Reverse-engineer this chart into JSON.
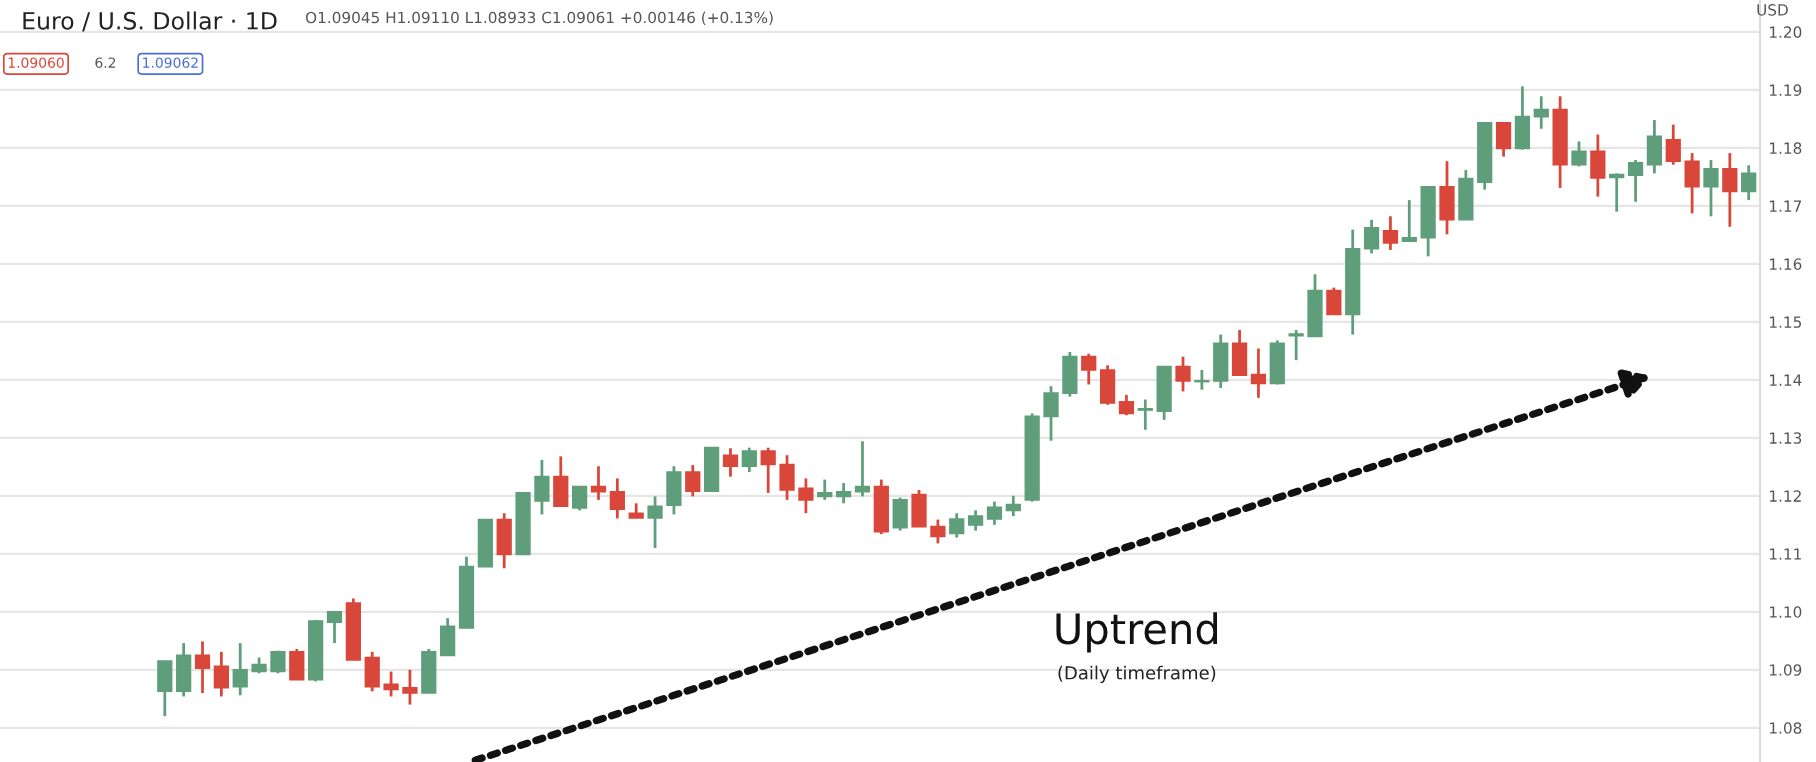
{
  "chart_data": {
    "type": "candlestick",
    "title": "Euro / U.S. Dollar · 1D",
    "ylabel": "USD",
    "annotations": [
      "O1.09045 H1.09110 L1.08933 C1.09061 +0.00146 (+0.13%)",
      "1.09060",
      "6.2",
      "1.09062",
      "Uptrend",
      "(Daily timeframe)"
    ],
    "categories": [
      null,
      null,
      null,
      null,
      null,
      null,
      null,
      null,
      null,
      null,
      null,
      null,
      null,
      null,
      null,
      null,
      null,
      null,
      null,
      null,
      null,
      null,
      null,
      null,
      null,
      null,
      null,
      null,
      null,
      null,
      null,
      null,
      null,
      null,
      null,
      null,
      null,
      null,
      null,
      null,
      null,
      null,
      null,
      null,
      null,
      null,
      null,
      null,
      null,
      null,
      null,
      null,
      null,
      null,
      null,
      null,
      null,
      null,
      null,
      null,
      null,
      null,
      null,
      null,
      null,
      null,
      null,
      null,
      null,
      null,
      null,
      null,
      null,
      null,
      null,
      null,
      null,
      null,
      null,
      null,
      null,
      null,
      null,
      null,
      null
    ],
    "ohlc": [
      [
        1.0863,
        1.0915,
        1.082,
        1.0915
      ],
      [
        1.0863,
        1.0946,
        1.0854,
        1.0925
      ],
      [
        1.0925,
        1.0949,
        1.086,
        1.0903
      ],
      [
        1.0906,
        1.0931,
        1.0854,
        1.0869
      ],
      [
        1.0871,
        1.0946,
        1.0856,
        1.09
      ],
      [
        1.0897,
        1.0921,
        1.0894,
        1.0909
      ],
      [
        1.0897,
        1.0933,
        1.0894,
        1.0931
      ],
      [
        1.0931,
        1.0936,
        1.0883,
        1.0883
      ],
      [
        1.0883,
        1.0986,
        1.088,
        1.0984
      ],
      [
        1.0982,
        1.1,
        1.0946,
        1.1
      ],
      [
        1.1015,
        1.1023,
        1.0917,
        1.0917
      ],
      [
        1.0921,
        1.0931,
        1.0863,
        1.0871
      ],
      [
        1.0875,
        1.0897,
        1.0854,
        1.0866
      ],
      [
        1.0869,
        1.09,
        1.084,
        1.086
      ],
      [
        1.086,
        1.0936,
        1.086,
        1.0931
      ],
      [
        1.0925,
        1.0989,
        1.0925,
        1.0975
      ],
      [
        1.0972,
        1.1095,
        1.0972,
        1.1078
      ],
      [
        1.1078,
        1.1159,
        1.1078,
        1.1159
      ],
      [
        1.1159,
        1.117,
        1.1075,
        1.1099
      ],
      [
        1.1099,
        1.1205,
        1.1099,
        1.1205
      ],
      [
        1.1191,
        1.1262,
        1.1168,
        1.1233
      ],
      [
        1.1233,
        1.1268,
        1.1182,
        1.1182
      ],
      [
        1.1179,
        1.1216,
        1.1175,
        1.1216
      ],
      [
        1.1216,
        1.1251,
        1.1193,
        1.1207
      ],
      [
        1.1207,
        1.123,
        1.1161,
        1.1177
      ],
      [
        1.117,
        1.1187,
        1.1162,
        1.1162
      ],
      [
        1.1162,
        1.1199,
        1.111,
        1.1182
      ],
      [
        1.1184,
        1.1251,
        1.1168,
        1.1241
      ],
      [
        1.1241,
        1.1253,
        1.1199,
        1.1208
      ],
      [
        1.1208,
        1.1283,
        1.1208,
        1.1283
      ],
      [
        1.127,
        1.1282,
        1.1233,
        1.1251
      ],
      [
        1.1251,
        1.1283,
        1.1241,
        1.1277
      ],
      [
        1.1277,
        1.1283,
        1.1205,
        1.1254
      ],
      [
        1.1254,
        1.127,
        1.1193,
        1.121
      ],
      [
        1.1213,
        1.123,
        1.117,
        1.1193
      ],
      [
        1.1199,
        1.1228,
        1.1193,
        1.1205
      ],
      [
        1.1199,
        1.1222,
        1.1187,
        1.1207
      ],
      [
        1.1207,
        1.1294,
        1.1199,
        1.1216
      ],
      [
        1.1216,
        1.1228,
        1.1134,
        1.1138
      ],
      [
        1.1145,
        1.1197,
        1.114,
        1.1193
      ],
      [
        1.1202,
        1.121,
        1.1147,
        1.1147
      ],
      [
        1.1147,
        1.1159,
        1.1118,
        1.113
      ],
      [
        1.1135,
        1.117,
        1.1128,
        1.116
      ],
      [
        1.115,
        1.1175,
        1.114,
        1.1165
      ],
      [
        1.116,
        1.119,
        1.115,
        1.118
      ],
      [
        1.1175,
        1.12,
        1.1165,
        1.1185
      ],
      [
        1.1193,
        1.1342,
        1.119,
        1.1337
      ],
      [
        1.1337,
        1.1389,
        1.1295,
        1.1377
      ],
      [
        1.1377,
        1.1448,
        1.1371,
        1.144
      ],
      [
        1.144,
        1.1445,
        1.1392,
        1.1417
      ],
      [
        1.1417,
        1.1425,
        1.1357,
        1.136
      ],
      [
        1.1362,
        1.1374,
        1.1339,
        1.1342
      ],
      [
        1.1348,
        1.1366,
        1.1314,
        1.135
      ],
      [
        1.1346,
        1.1423,
        1.1331,
        1.1423
      ],
      [
        1.1423,
        1.144,
        1.138,
        1.1398
      ],
      [
        1.1397,
        1.1417,
        1.1383,
        1.1398
      ],
      [
        1.1398,
        1.1478,
        1.1386,
        1.1463
      ],
      [
        1.1463,
        1.1486,
        1.1408,
        1.1408
      ],
      [
        1.1409,
        1.1454,
        1.1369,
        1.1394
      ],
      [
        1.1394,
        1.1468,
        1.1392,
        1.1463
      ],
      [
        1.1476,
        1.1486,
        1.1434,
        1.1479
      ],
      [
        1.1475,
        1.1582,
        1.1475,
        1.1554
      ],
      [
        1.1554,
        1.1559,
        1.1513,
        1.1513
      ],
      [
        1.1513,
        1.1659,
        1.1478,
        1.1626
      ],
      [
        1.1626,
        1.1676,
        1.1618,
        1.1662
      ],
      [
        1.1657,
        1.1682,
        1.1624,
        1.1636
      ],
      [
        1.1639,
        1.171,
        1.1639,
        1.1645
      ],
      [
        1.1645,
        1.1733,
        1.1613,
        1.1733
      ],
      [
        1.1733,
        1.1777,
        1.1651,
        1.1676
      ],
      [
        1.1676,
        1.1762,
        1.1676,
        1.1747
      ],
      [
        1.1741,
        1.1843,
        1.1728,
        1.1843
      ],
      [
        1.1843,
        1.1843,
        1.1785,
        1.1799
      ],
      [
        1.1799,
        1.1906,
        1.1797,
        1.1854
      ],
      [
        1.1854,
        1.1889,
        1.1833,
        1.1866
      ],
      [
        1.1866,
        1.1889,
        1.1731,
        1.1771
      ],
      [
        1.1771,
        1.1811,
        1.1768,
        1.1794
      ],
      [
        1.1794,
        1.1823,
        1.1716,
        1.1748
      ],
      [
        1.1749,
        1.1756,
        1.169,
        1.1754
      ],
      [
        1.1753,
        1.1779,
        1.1707,
        1.1774
      ],
      [
        1.1771,
        1.1848,
        1.1756,
        1.182
      ],
      [
        1.1814,
        1.184,
        1.1771,
        1.1777
      ],
      [
        1.1777,
        1.1791,
        1.1687,
        1.1733
      ],
      [
        1.1733,
        1.1779,
        1.1682,
        1.1764
      ],
      [
        1.1764,
        1.1791,
        1.1664,
        1.1725
      ],
      [
        1.1725,
        1.177,
        1.171,
        1.1756
      ]
    ],
    "colors": [
      "#5f9e7a",
      "#5f9e7a",
      "#d9473a",
      "#d9473a",
      "#5f9e7a",
      "#5f9e7a",
      "#5f9e7a",
      "#d9473a",
      "#5f9e7a",
      "#5f9e7a",
      "#d9473a",
      "#d9473a",
      "#d9473a",
      "#d9473a",
      "#5f9e7a",
      "#5f9e7a",
      "#5f9e7a",
      "#5f9e7a",
      "#d9473a",
      "#5f9e7a",
      "#5f9e7a",
      "#d9473a",
      "#5f9e7a",
      "#d9473a",
      "#d9473a",
      "#d9473a",
      "#5f9e7a",
      "#5f9e7a",
      "#d9473a",
      "#5f9e7a",
      "#d9473a",
      "#5f9e7a",
      "#d9473a",
      "#d9473a",
      "#d9473a",
      "#5f9e7a",
      "#5f9e7a",
      "#5f9e7a",
      "#d9473a",
      "#5f9e7a",
      "#d9473a",
      "#d9473a",
      "#5f9e7a",
      "#5f9e7a",
      "#5f9e7a",
      "#5f9e7a",
      "#5f9e7a",
      "#5f9e7a",
      "#5f9e7a",
      "#d9473a",
      "#d9473a",
      "#d9473a",
      "#5f9e7a",
      "#5f9e7a",
      "#d9473a",
      "#5f9e7a",
      "#5f9e7a",
      "#d9473a",
      "#d9473a",
      "#5f9e7a",
      "#5f9e7a",
      "#5f9e7a",
      "#d9473a",
      "#5f9e7a",
      "#5f9e7a",
      "#d9473a",
      "#5f9e7a",
      "#5f9e7a",
      "#d9473a",
      "#5f9e7a",
      "#5f9e7a",
      "#d9473a",
      "#5f9e7a",
      "#5f9e7a",
      "#d9473a",
      "#5f9e7a",
      "#d9473a",
      "#5f9e7a",
      "#5f9e7a",
      "#5f9e7a",
      "#d9473a",
      "#d9473a",
      "#5f9e7a",
      "#d9473a",
      "#5f9e7a"
    ],
    "ylim": [
      1.0741,
      1.2055
    ],
    "yticks": [
      {
        "value": 1.08,
        "label": "1.08"
      },
      {
        "value": 1.09,
        "label": "1.09"
      },
      {
        "value": 1.1,
        "label": "1.10"
      },
      {
        "value": 1.11,
        "label": "1.11"
      },
      {
        "value": 1.12,
        "label": "1.12"
      },
      {
        "value": 1.13,
        "label": "1.13"
      },
      {
        "value": 1.14,
        "label": "1.14"
      },
      {
        "value": 1.15,
        "label": "1.15"
      },
      {
        "value": 1.16,
        "label": "1.16"
      },
      {
        "value": 1.17,
        "label": "1.17"
      },
      {
        "value": 1.18,
        "label": "1.18"
      },
      {
        "value": 1.19,
        "label": "1.19"
      },
      {
        "value": 1.2,
        "label": "1.20"
      }
    ],
    "grid": "y",
    "tick_labels": "y"
  }
}
